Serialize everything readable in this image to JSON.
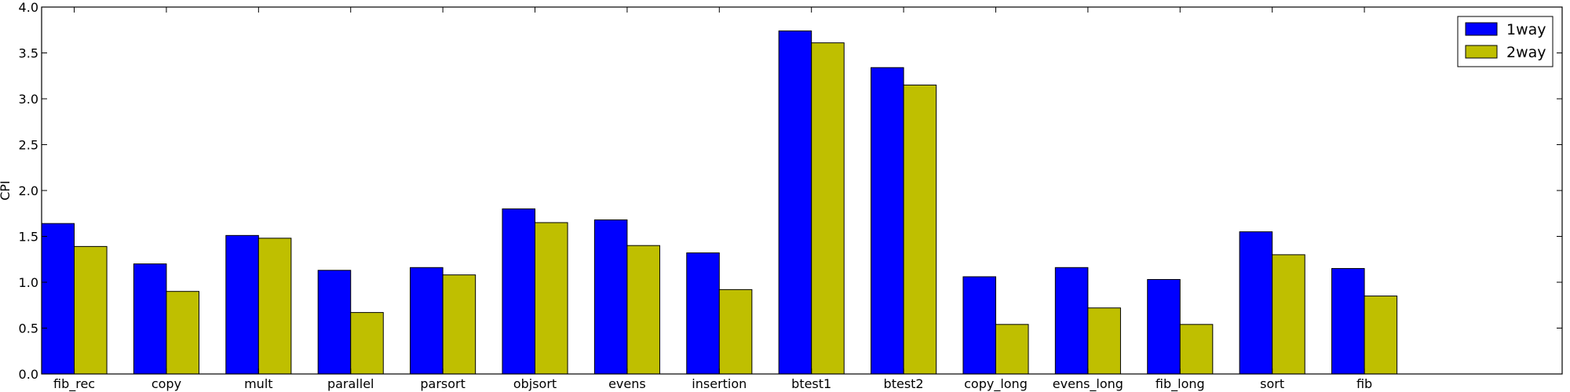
{
  "chart_data": {
    "type": "bar",
    "categories": [
      "fib_rec",
      "copy",
      "mult",
      "parallel",
      "parsort",
      "objsort",
      "evens",
      "insertion",
      "btest1",
      "btest2",
      "copy_long",
      "evens_long",
      "fib_long",
      "sort",
      "fib"
    ],
    "series": [
      {
        "name": "1way",
        "color": "#0000ff",
        "values": [
          1.64,
          1.2,
          1.51,
          1.13,
          1.16,
          1.8,
          1.68,
          1.32,
          3.74,
          3.34,
          1.06,
          1.16,
          1.03,
          1.55,
          1.15
        ]
      },
      {
        "name": "2way",
        "color": "#bfbf00",
        "values": [
          1.39,
          0.9,
          1.48,
          0.67,
          1.08,
          1.65,
          1.4,
          0.92,
          3.61,
          3.15,
          0.54,
          0.72,
          0.54,
          1.3,
          0.85
        ]
      }
    ],
    "ylabel": "CPI",
    "xlabel": "",
    "ylim": [
      0.0,
      4.0
    ],
    "yticks": [
      "0.0",
      "0.5",
      "1.0",
      "1.5",
      "2.0",
      "2.5",
      "3.0",
      "3.5",
      "4.0"
    ],
    "grid": false,
    "legend_position": "top-right"
  }
}
